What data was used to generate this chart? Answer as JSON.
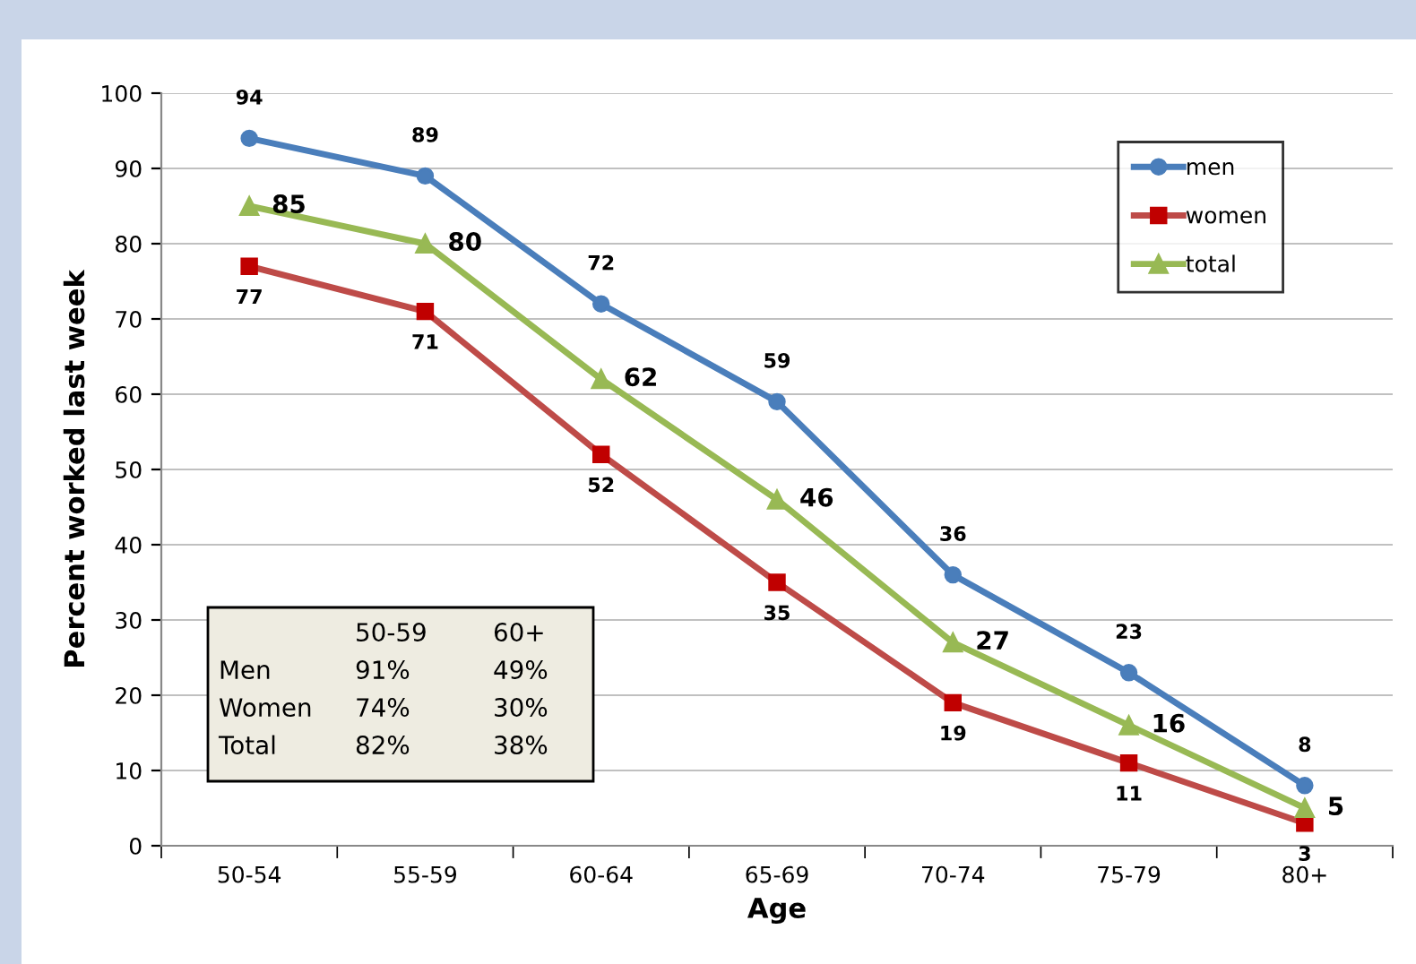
{
  "chart_data": {
    "type": "line",
    "xlabel": "Age",
    "ylabel": "Percent worked last week",
    "categories": [
      "50-54",
      "55-59",
      "60-64",
      "65-69",
      "70-74",
      "75-79",
      "80+"
    ],
    "series": [
      {
        "name": "men",
        "color": "#4a7ebb",
        "marker": "circle",
        "values": [
          94,
          89,
          72,
          59,
          36,
          23,
          8
        ]
      },
      {
        "name": "women",
        "color": "#be4b48",
        "marker": "square",
        "values": [
          77,
          71,
          52,
          35,
          19,
          11,
          3
        ]
      },
      {
        "name": "total",
        "color": "#98b954",
        "marker": "triangle",
        "values": [
          85,
          80,
          62,
          46,
          27,
          16,
          5
        ]
      }
    ],
    "ylim": [
      0,
      100
    ],
    "yticks": [
      0,
      10,
      20,
      30,
      40,
      50,
      60,
      70,
      80,
      90,
      100
    ],
    "grid": "y",
    "legend": "top right",
    "data_labels": true,
    "annotations": [
      "\t50-59\t60+",
      "Men\t91%\t49%",
      "Women\t74%\t30%",
      "Total\t82%\t38%"
    ]
  }
}
